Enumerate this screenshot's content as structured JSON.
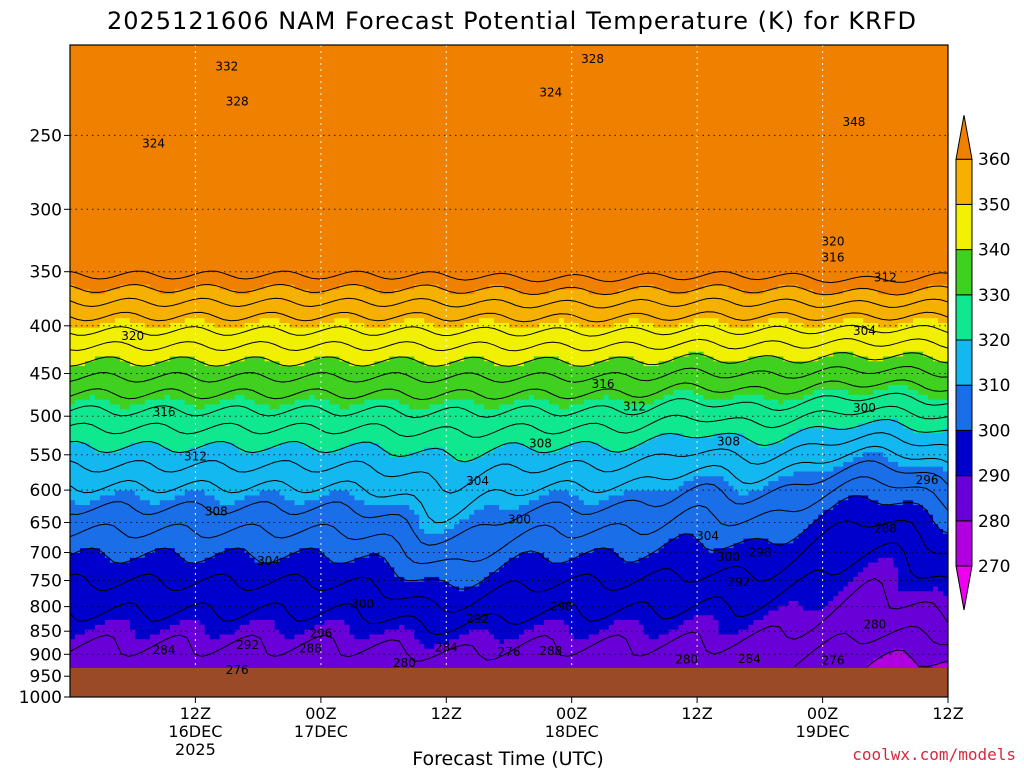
{
  "chart_data": {
    "type": "heatmap",
    "title": "2025121606 NAM Forecast Potential Temperature (K) for KRFD",
    "xlabel": "Forecast Time (UTC)",
    "ylabel": "",
    "credit": "coolwx.com/models",
    "y_range": [
      200,
      1000
    ],
    "y_ticks": [
      "250",
      "300",
      "350",
      "400",
      "450",
      "500",
      "550",
      "600",
      "650",
      "700",
      "750",
      "800",
      "850",
      "900",
      "950",
      "1000"
    ],
    "x_range_hours": [
      -6,
      78
    ],
    "x_ticks": [
      {
        "hour": 6,
        "line1": "12Z",
        "line2": "16DEC",
        "line3": "2025"
      },
      {
        "hour": 18,
        "line1": "00Z",
        "line2": "17DEC",
        "line3": ""
      },
      {
        "hour": 30,
        "line1": "12Z",
        "line2": "",
        "line3": ""
      },
      {
        "hour": 42,
        "line1": "00Z",
        "line2": "18DEC",
        "line3": ""
      },
      {
        "hour": 54,
        "line1": "12Z",
        "line2": "",
        "line3": ""
      },
      {
        "hour": 66,
        "line1": "00Z",
        "line2": "19DEC",
        "line3": ""
      },
      {
        "hour": 78,
        "line1": "12Z",
        "line2": "",
        "line3": ""
      }
    ],
    "colorbar": {
      "ticks": [
        "270",
        "280",
        "290",
        "300",
        "310",
        "320",
        "330",
        "340",
        "350",
        "360"
      ],
      "bands": [
        {
          "lo": 260,
          "hi": 270,
          "color": "#ee00ee"
        },
        {
          "lo": 270,
          "hi": 280,
          "color": "#b000e0"
        },
        {
          "lo": 280,
          "hi": 290,
          "color": "#6a00d8"
        },
        {
          "lo": 290,
          "hi": 300,
          "color": "#0000cc"
        },
        {
          "lo": 300,
          "hi": 310,
          "color": "#1a6ee8"
        },
        {
          "lo": 310,
          "hi": 320,
          "color": "#14b8f0"
        },
        {
          "lo": 320,
          "hi": 330,
          "color": "#10e890"
        },
        {
          "lo": 330,
          "hi": 340,
          "color": "#40d020"
        },
        {
          "lo": 340,
          "hi": 350,
          "color": "#f0f000"
        },
        {
          "lo": 350,
          "hi": 360,
          "color": "#f5b000"
        },
        {
          "lo": 360,
          "hi": 370,
          "color": "#f08000"
        }
      ]
    },
    "contour_labels": [
      {
        "text": "332",
        "hour": 9,
        "p": 211
      },
      {
        "text": "328",
        "hour": 10,
        "p": 230
      },
      {
        "text": "324",
        "hour": 2,
        "p": 255
      },
      {
        "text": "328",
        "hour": 44,
        "p": 207
      },
      {
        "text": "324",
        "hour": 40,
        "p": 225
      },
      {
        "text": "348",
        "hour": 69,
        "p": 242
      },
      {
        "text": "320",
        "hour": 67,
        "p": 325
      },
      {
        "text": "316",
        "hour": 67,
        "p": 338
      },
      {
        "text": "312",
        "hour": 72,
        "p": 355
      },
      {
        "text": "320",
        "hour": 0,
        "p": 410
      },
      {
        "text": "316",
        "hour": 45,
        "p": 462
      },
      {
        "text": "304",
        "hour": 70,
        "p": 405
      },
      {
        "text": "316",
        "hour": 3,
        "p": 495
      },
      {
        "text": "312",
        "hour": 48,
        "p": 488
      },
      {
        "text": "300",
        "hour": 70,
        "p": 490
      },
      {
        "text": "312",
        "hour": 6,
        "p": 552
      },
      {
        "text": "308",
        "hour": 39,
        "p": 535
      },
      {
        "text": "308",
        "hour": 57,
        "p": 532
      },
      {
        "text": "304",
        "hour": 33,
        "p": 587
      },
      {
        "text": "296",
        "hour": 76,
        "p": 585
      },
      {
        "text": "308",
        "hour": 8,
        "p": 633
      },
      {
        "text": "300",
        "hour": 37,
        "p": 645
      },
      {
        "text": "304",
        "hour": 55,
        "p": 672
      },
      {
        "text": "288",
        "hour": 72,
        "p": 660
      },
      {
        "text": "304",
        "hour": 13,
        "p": 715
      },
      {
        "text": "300",
        "hour": 57,
        "p": 708
      },
      {
        "text": "298",
        "hour": 60,
        "p": 700
      },
      {
        "text": "292",
        "hour": 58,
        "p": 753
      },
      {
        "text": "300",
        "hour": 22,
        "p": 795
      },
      {
        "text": "298",
        "hour": 41,
        "p": 800
      },
      {
        "text": "292",
        "hour": 33,
        "p": 825
      },
      {
        "text": "280",
        "hour": 71,
        "p": 836
      },
      {
        "text": "296",
        "hour": 18,
        "p": 855
      },
      {
        "text": "292",
        "hour": 11,
        "p": 880
      },
      {
        "text": "288",
        "hour": 17,
        "p": 887
      },
      {
        "text": "284",
        "hour": 3,
        "p": 890
      },
      {
        "text": "284",
        "hour": 30,
        "p": 885
      },
      {
        "text": "276",
        "hour": 36,
        "p": 895
      },
      {
        "text": "288",
        "hour": 40,
        "p": 893
      },
      {
        "text": "280",
        "hour": 53,
        "p": 912
      },
      {
        "text": "284",
        "hour": 59,
        "p": 910
      },
      {
        "text": "276",
        "hour": 67,
        "p": 914
      },
      {
        "text": "280",
        "hour": 26,
        "p": 920
      },
      {
        "text": "276",
        "hour": 10,
        "p": 935
      }
    ]
  }
}
